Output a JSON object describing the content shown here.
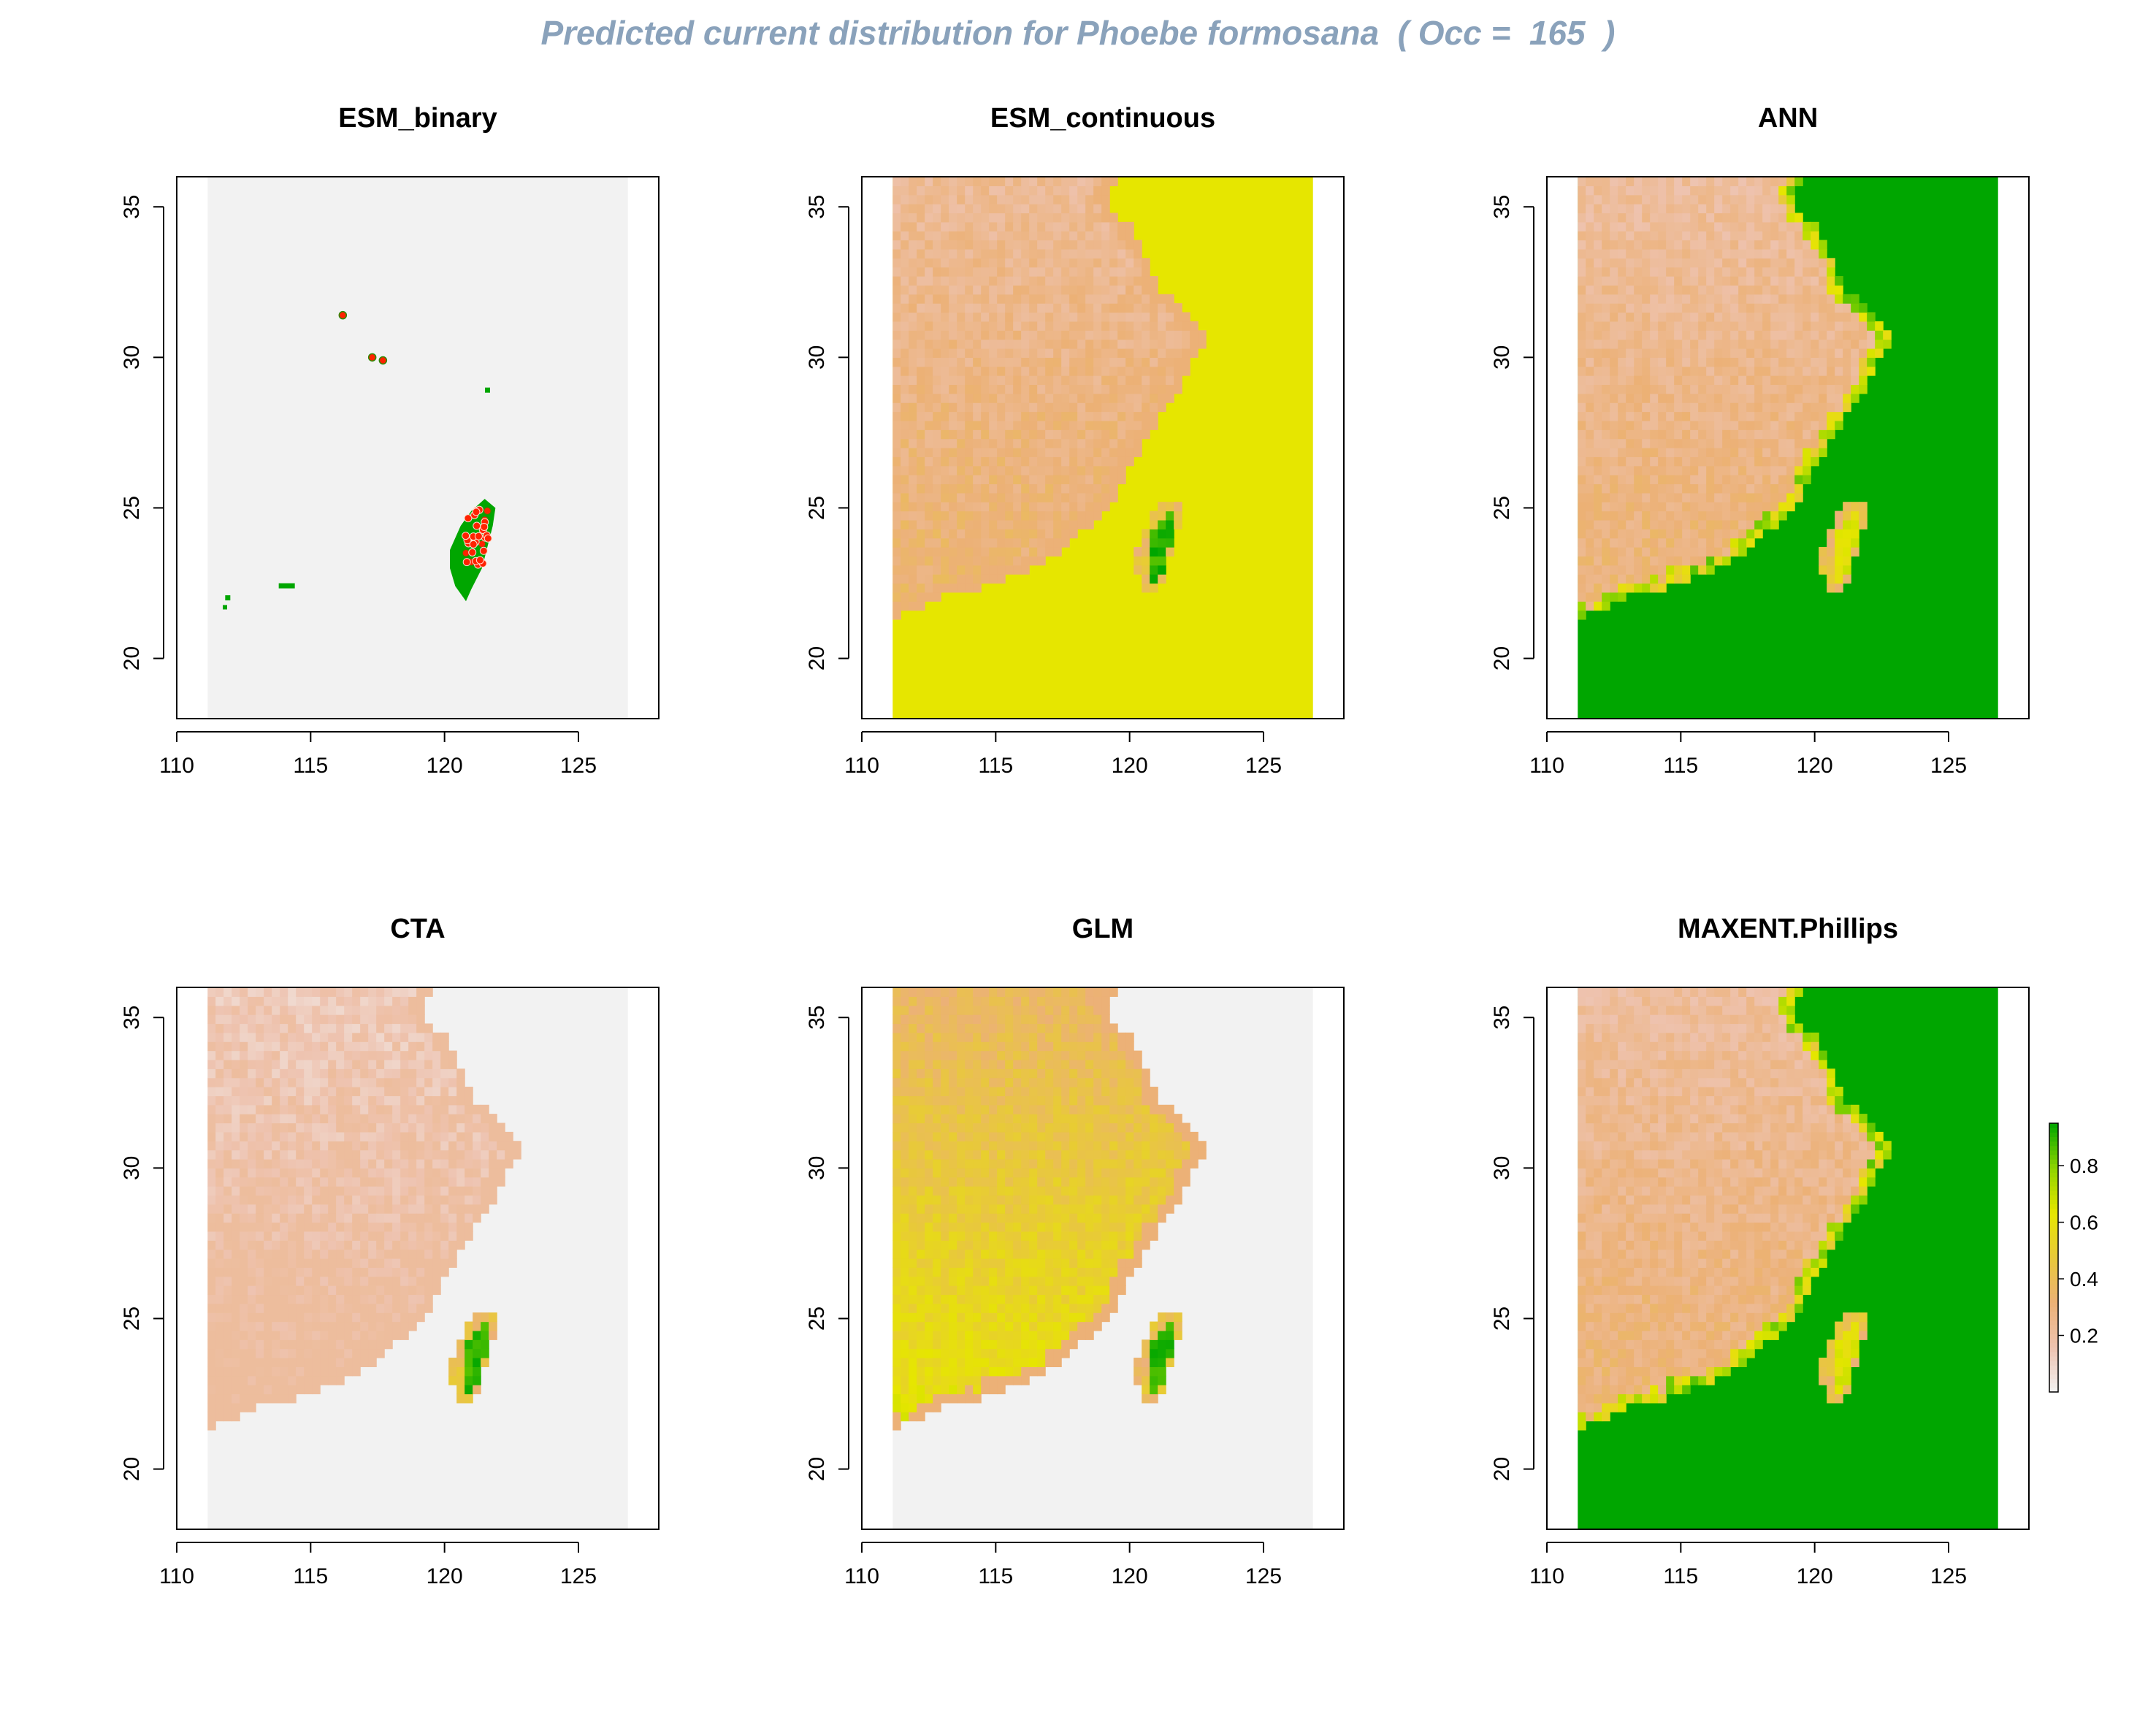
{
  "figure": {
    "title": "Predicted current distribution for Phoebe formosana  ( Occ =  165  )",
    "colors": {
      "sea_na": "#f2f2f2",
      "high_green": "#00a600",
      "mid_yellow": "#e6e600",
      "low_tan": "#ecb176",
      "very_low_pink": "#f2f2f2",
      "presence_points": "#ff0000",
      "title_color": "#8aa2bb"
    }
  },
  "chart_data": [
    {
      "type": "heatmap",
      "title": "ESM_binary",
      "xlim": [
        110,
        128
      ],
      "ylim": [
        18,
        36
      ],
      "x_ticks": [
        "110",
        "115",
        "120",
        "125"
      ],
      "y_ticks": [
        "20",
        "25",
        "30",
        "35"
      ],
      "mode": "binary",
      "sea_fill": "#f2f2f2",
      "presence_cells": [
        [
          121.5,
          23.7
        ],
        [
          112,
          22
        ],
        [
          114,
          22.4
        ],
        [
          121.7,
          28.9
        ]
      ],
      "occurrence_points": [
        [
          116.2,
          31.4
        ],
        [
          117.3,
          30.0
        ],
        [
          117.7,
          29.9
        ],
        [
          121.2,
          24.0
        ],
        [
          121.5,
          24.6
        ],
        [
          121.0,
          23.2
        ],
        [
          121.4,
          23.8
        ],
        [
          121.6,
          24.9
        ],
        [
          120.8,
          23.5
        ]
      ]
    },
    {
      "type": "heatmap",
      "title": "ESM_continuous",
      "xlim": [
        110,
        128
      ],
      "ylim": [
        18,
        36
      ],
      "x_ticks": [
        "110",
        "115",
        "120",
        "125"
      ],
      "y_ticks": [
        "20",
        "25",
        "30",
        "35"
      ],
      "mode": "continuous",
      "sea_fill": "#e6e600",
      "taiwan_core": "#00a600"
    },
    {
      "type": "heatmap",
      "title": "ANN",
      "xlim": [
        110,
        128
      ],
      "ylim": [
        18,
        36
      ],
      "x_ticks": [
        "110",
        "115",
        "120",
        "125"
      ],
      "y_ticks": [
        "20",
        "25",
        "30",
        "35"
      ],
      "mode": "continuous",
      "sea_fill": "#00a600",
      "taiwan_core": "#c8d400"
    },
    {
      "type": "heatmap",
      "title": "CTA",
      "xlim": [
        110,
        128
      ],
      "ylim": [
        18,
        36
      ],
      "x_ticks": [
        "110",
        "115",
        "120",
        "125"
      ],
      "y_ticks": [
        "20",
        "25",
        "30",
        "35"
      ],
      "mode": "continuous",
      "sea_fill": "#f2f2f2",
      "taiwan_core": "#00a600"
    },
    {
      "type": "heatmap",
      "title": "GLM",
      "xlim": [
        110,
        128
      ],
      "ylim": [
        18,
        36
      ],
      "x_ticks": [
        "110",
        "115",
        "120",
        "125"
      ],
      "y_ticks": [
        "20",
        "25",
        "30",
        "35"
      ],
      "mode": "continuous",
      "sea_fill": "#f2f2f2",
      "taiwan_core": "#00a600"
    },
    {
      "type": "heatmap",
      "title": "MAXENT.Phillips",
      "xlim": [
        110,
        128
      ],
      "ylim": [
        18,
        36
      ],
      "x_ticks": [
        "110",
        "115",
        "120",
        "125"
      ],
      "y_ticks": [
        "20",
        "25",
        "30",
        "35"
      ],
      "mode": "continuous",
      "sea_fill": "#00a600",
      "taiwan_core": "#c8d400",
      "legend": {
        "ticks": [
          "0.2",
          "0.4",
          "0.6",
          "0.8"
        ],
        "tick_values": [
          0.2,
          0.4,
          0.6,
          0.8
        ],
        "range": [
          0.0,
          0.95
        ],
        "colors": [
          "#f2f2f2",
          "#ecb176",
          "#e6e600",
          "#00a600"
        ]
      }
    }
  ]
}
